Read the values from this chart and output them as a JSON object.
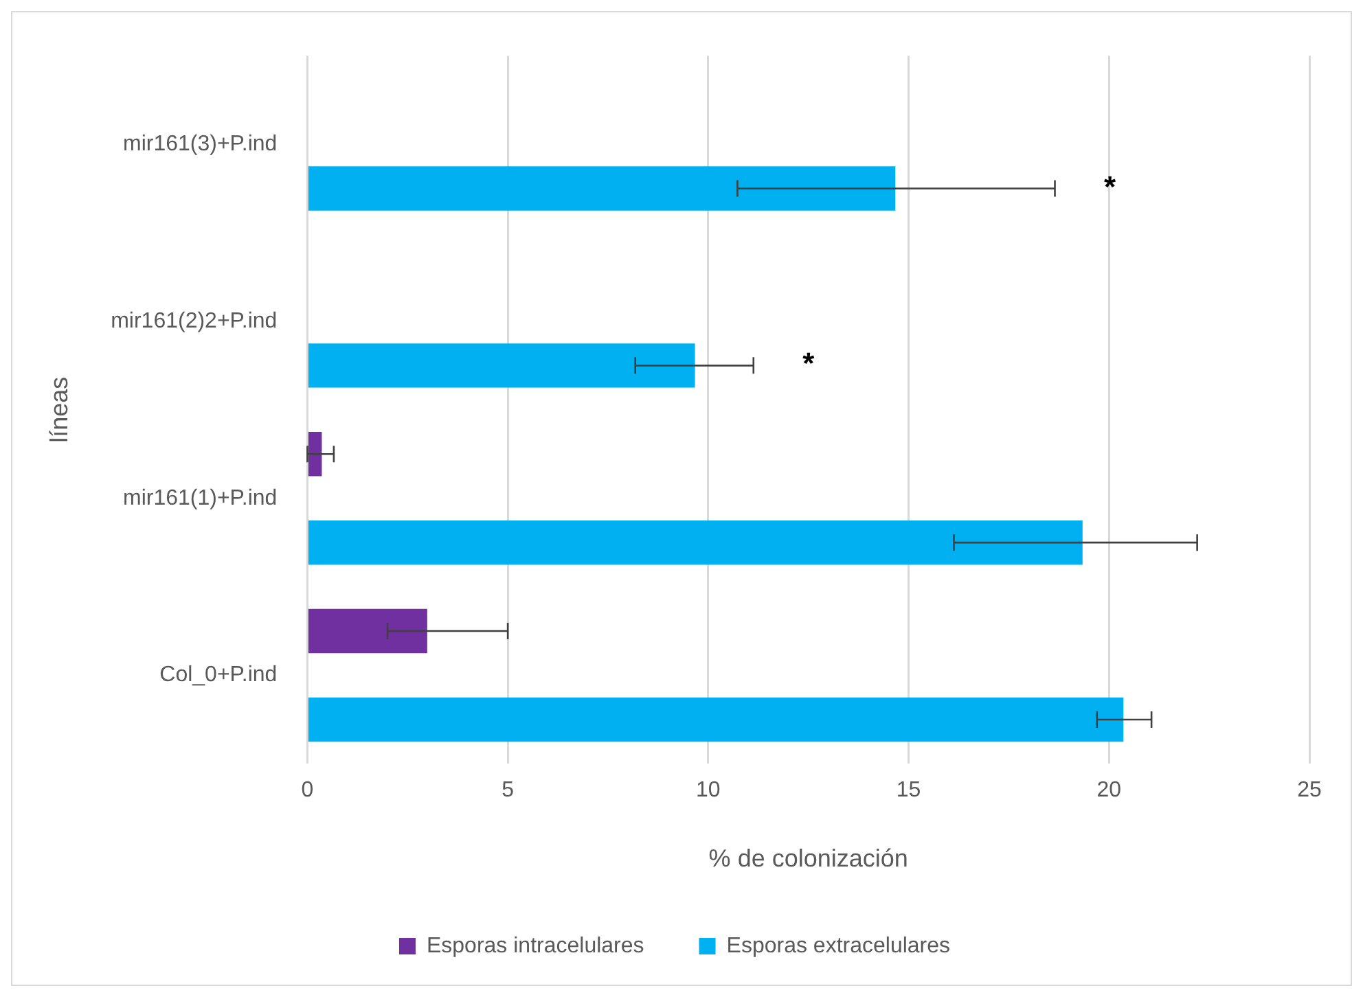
{
  "chart_data": {
    "type": "bar",
    "orientation": "horizontal",
    "xlabel": "% de colonización",
    "ylabel": "líneas",
    "categories": [
      "mir161(3)+P.ind",
      "mir161(2)2+P.ind",
      "mir161(1)+P.ind",
      "Col_0+P.ind"
    ],
    "series": [
      {
        "name": "Esporas intracelulares",
        "color": "#7030a0",
        "values": [
          0,
          0,
          0.36,
          2.99
        ],
        "errors": [
          null,
          null,
          [
            0,
            0.66
          ],
          [
            2.0,
            5.0
          ]
        ]
      },
      {
        "name": "Esporas extracelulares",
        "color": "#00b0f0",
        "values": [
          14.67,
          9.67,
          19.34,
          20.36
        ],
        "errors": [
          [
            10.73,
            18.65
          ],
          [
            8.18,
            11.13
          ],
          [
            16.13,
            22.2
          ],
          [
            19.7,
            21.06
          ]
        ]
      }
    ],
    "xlim": [
      0,
      25
    ],
    "xticks": [
      0,
      5,
      10,
      15,
      20,
      25
    ],
    "grid": "x",
    "legend": "bottom",
    "annotations": [
      "*",
      "*"
    ]
  }
}
